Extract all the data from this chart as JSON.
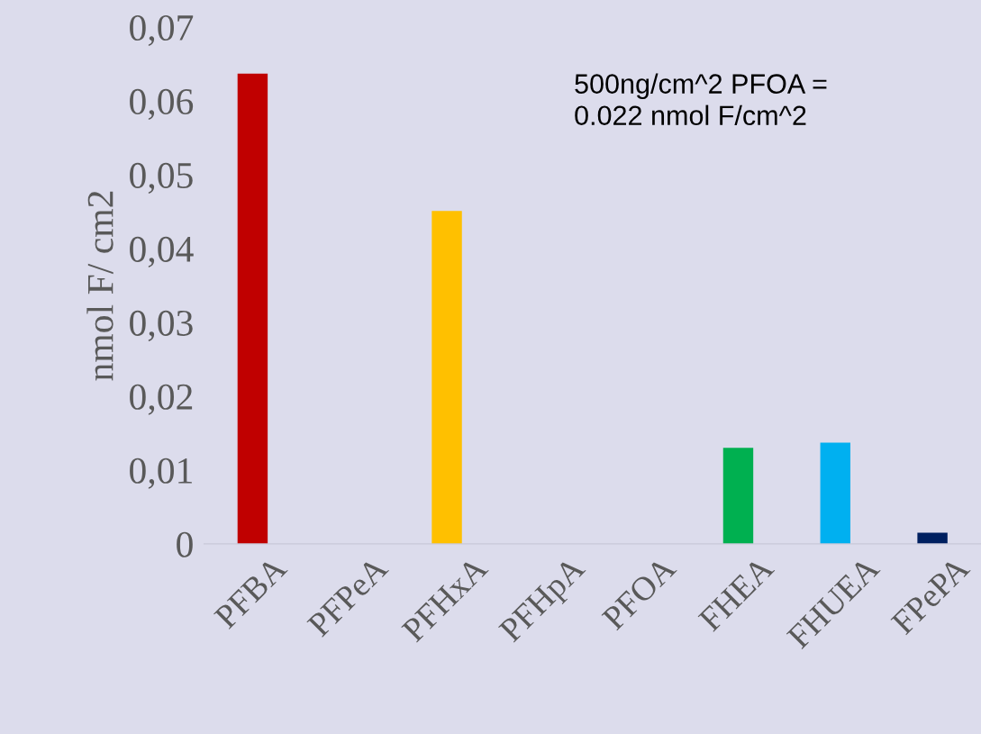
{
  "chart_data": {
    "type": "bar",
    "ylabel": "nmol F/ cm2",
    "categories": [
      "PFBA",
      "PFPeA",
      "PFHxA",
      "PFHpA",
      "PFOA",
      "FHEA",
      "FHUEA",
      "FPePA"
    ],
    "values": [
      0.0637,
      0,
      0.0451,
      0,
      0,
      0.013,
      0.0137,
      0.0015
    ],
    "colors": [
      "#c00000",
      "#c00000",
      "#ffc000",
      "#ffc000",
      "#ffc000",
      "#00b050",
      "#00b0f0",
      "#002060"
    ],
    "ylim": [
      0,
      0.07
    ],
    "yticks": [
      0,
      {
        "value": 0.01,
        "label": "0,01"
      },
      {
        "value": 0.02,
        "label": "0,02"
      },
      {
        "value": 0.03,
        "label": "0,03"
      },
      {
        "value": 0.04,
        "label": "0,04"
      },
      {
        "value": 0.05,
        "label": "0,05"
      },
      {
        "value": 0.06,
        "label": "0,06"
      },
      {
        "value": 0.07,
        "label": "0,07"
      }
    ],
    "grid": false,
    "annotations": [
      "500ng/cm^2 PFOA = \n0.022 nmol F/cm^2"
    ]
  }
}
